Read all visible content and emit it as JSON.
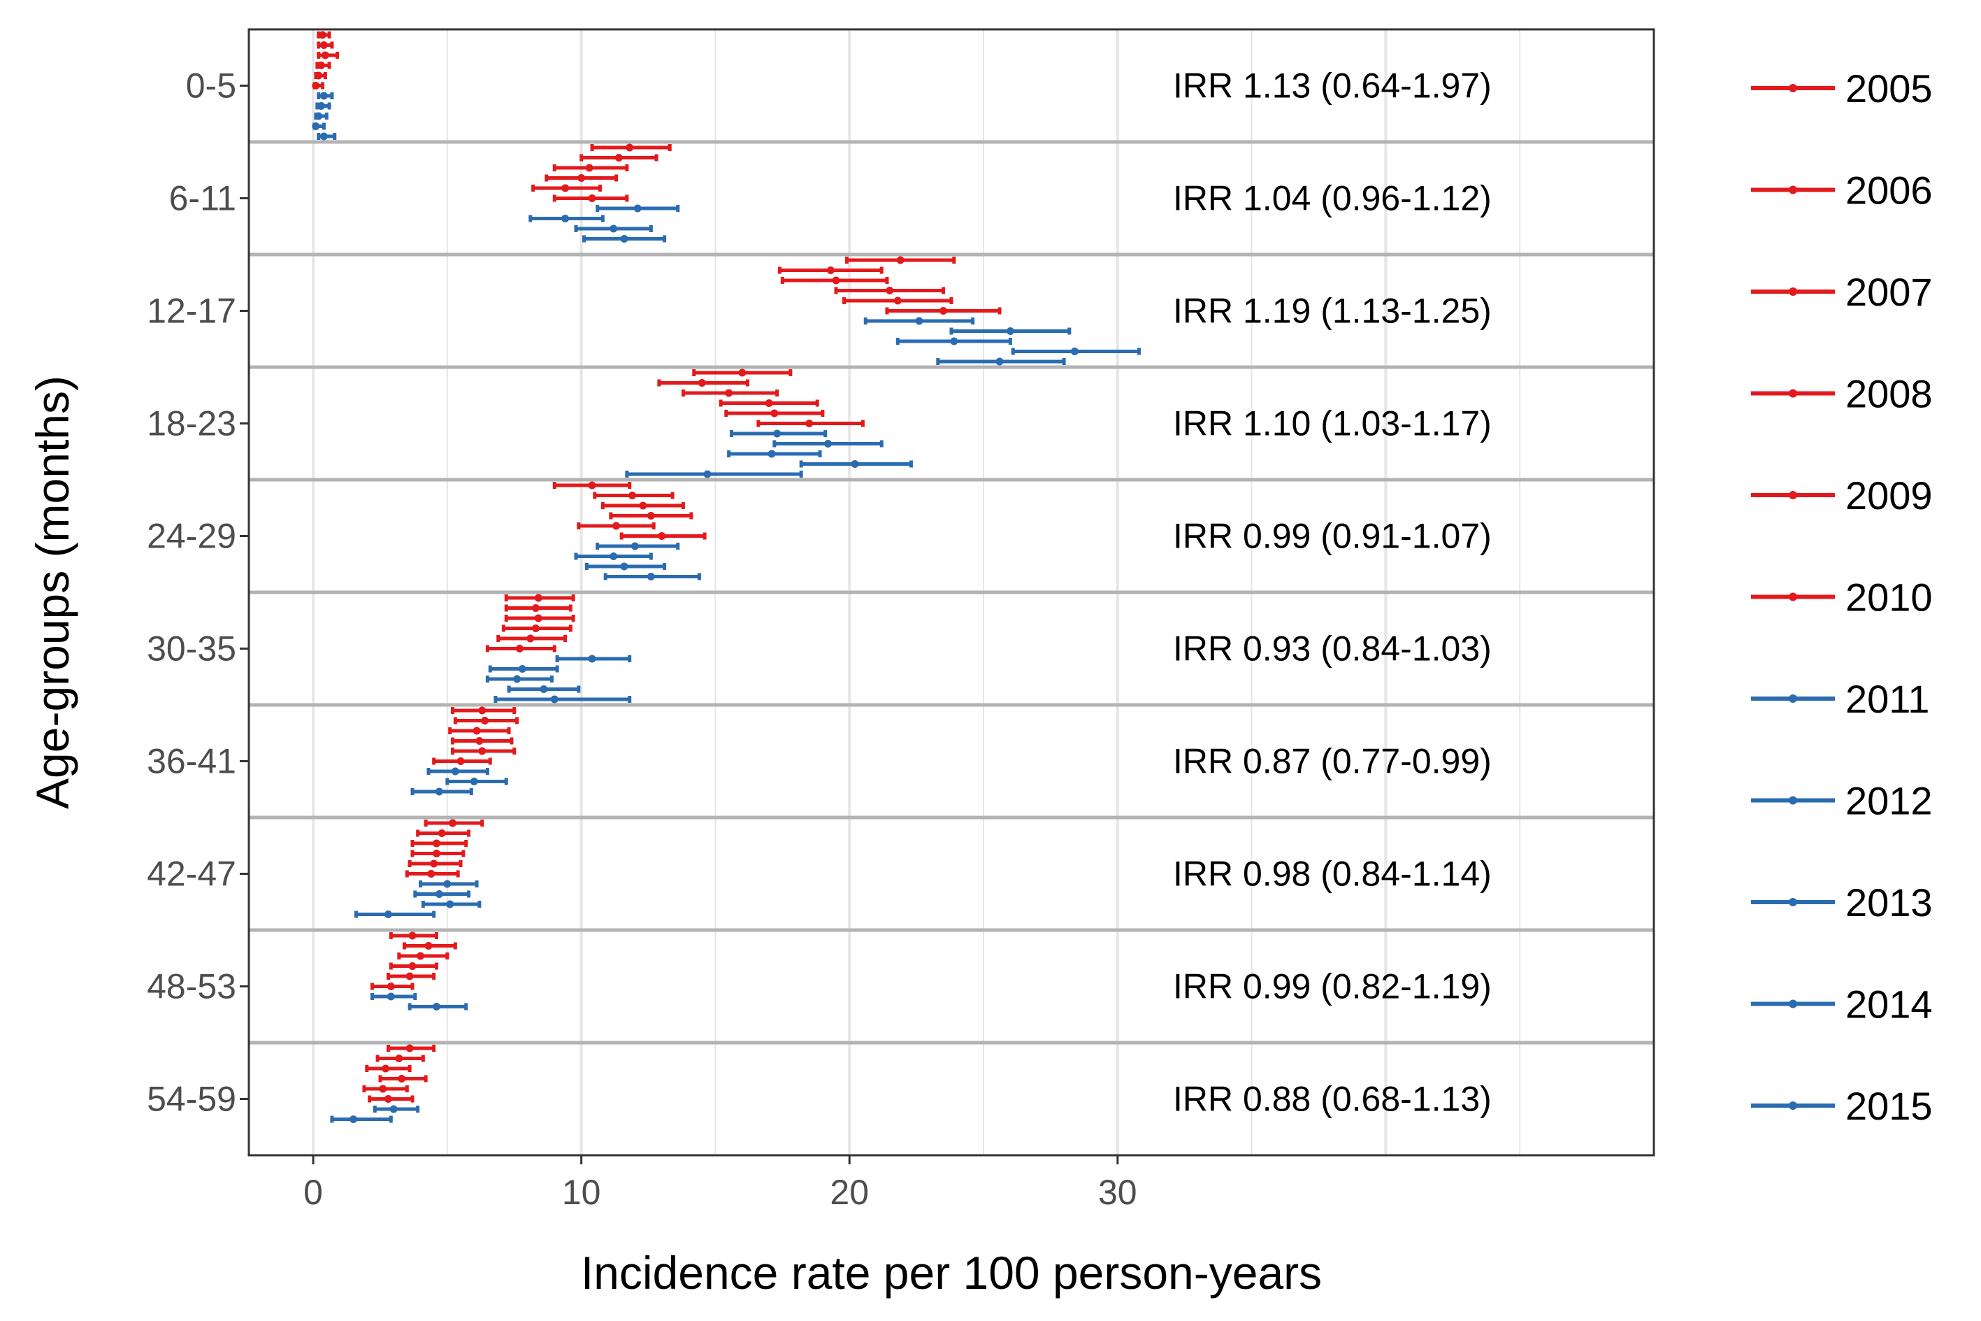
{
  "chart_data": {
    "type": "errorbar",
    "xlabel": "Incidence rate per 100 person-years",
    "ylabel": "Age-groups (months)",
    "xlim": [
      -2.4,
      50
    ],
    "xticks": [
      0,
      10,
      20,
      30
    ],
    "xtick_labels": [
      "0",
      "10",
      "20",
      "30"
    ],
    "grid": true,
    "legend_position": "right",
    "years": [
      "2005",
      "2006",
      "2007",
      "2008",
      "2009",
      "2010",
      "2011",
      "2012",
      "2013",
      "2014",
      "2015"
    ],
    "colors": {
      "2005": "#e31a1c",
      "2006": "#e31a1c",
      "2007": "#e31a1c",
      "2008": "#e31a1c",
      "2009": "#e31a1c",
      "2010": "#e31a1c",
      "2011": "#2b6cb0",
      "2012": "#2b6cb0",
      "2013": "#2b6cb0",
      "2014": "#2b6cb0",
      "2015": "#2b6cb0"
    },
    "groups": [
      {
        "label": "0-5",
        "irr": "IRR 1.13 (0.64-1.97)",
        "points": [
          {
            "year": "2005",
            "est": 0.35,
            "lo": 0.2,
            "hi": 0.6
          },
          {
            "year": "2006",
            "est": 0.4,
            "lo": 0.2,
            "hi": 0.7
          },
          {
            "year": "2007",
            "est": 0.45,
            "lo": 0.2,
            "hi": 0.9
          },
          {
            "year": "2008",
            "est": 0.3,
            "lo": 0.15,
            "hi": 0.6
          },
          {
            "year": "2009",
            "est": 0.2,
            "lo": 0.1,
            "hi": 0.45
          },
          {
            "year": "2010",
            "est": 0.1,
            "lo": 0.05,
            "hi": 0.35
          },
          {
            "year": "2011",
            "est": 0.4,
            "lo": 0.2,
            "hi": 0.7
          },
          {
            "year": "2012",
            "est": 0.3,
            "lo": 0.15,
            "hi": 0.6
          },
          {
            "year": "2013",
            "est": 0.2,
            "lo": 0.1,
            "hi": 0.5
          },
          {
            "year": "2014",
            "est": 0.1,
            "lo": 0.05,
            "hi": 0.4
          },
          {
            "year": "2015",
            "est": 0.4,
            "lo": 0.2,
            "hi": 0.8
          }
        ]
      },
      {
        "label": "6-11",
        "irr": "IRR 1.04 (0.96-1.12)",
        "points": [
          {
            "year": "2005",
            "est": 11.8,
            "lo": 10.4,
            "hi": 13.3
          },
          {
            "year": "2006",
            "est": 11.4,
            "lo": 10.0,
            "hi": 12.8
          },
          {
            "year": "2007",
            "est": 10.3,
            "lo": 9.0,
            "hi": 11.7
          },
          {
            "year": "2008",
            "est": 10.0,
            "lo": 8.7,
            "hi": 11.3
          },
          {
            "year": "2009",
            "est": 9.4,
            "lo": 8.2,
            "hi": 10.7
          },
          {
            "year": "2010",
            "est": 10.4,
            "lo": 9.0,
            "hi": 11.7
          },
          {
            "year": "2011",
            "est": 12.1,
            "lo": 10.6,
            "hi": 13.6
          },
          {
            "year": "2012",
            "est": 9.4,
            "lo": 8.1,
            "hi": 10.8
          },
          {
            "year": "2013",
            "est": 11.2,
            "lo": 9.8,
            "hi": 12.6
          },
          {
            "year": "2014",
            "est": 11.6,
            "lo": 10.1,
            "hi": 13.1
          }
        ]
      },
      {
        "label": "12-17",
        "irr": "IRR 1.19 (1.13-1.25)",
        "points": [
          {
            "year": "2005",
            "est": 21.9,
            "lo": 19.9,
            "hi": 23.9
          },
          {
            "year": "2006",
            "est": 19.3,
            "lo": 17.4,
            "hi": 21.2
          },
          {
            "year": "2007",
            "est": 19.5,
            "lo": 17.5,
            "hi": 21.4
          },
          {
            "year": "2008",
            "est": 21.5,
            "lo": 19.5,
            "hi": 23.5
          },
          {
            "year": "2009",
            "est": 21.8,
            "lo": 19.8,
            "hi": 23.8
          },
          {
            "year": "2010",
            "est": 23.5,
            "lo": 21.4,
            "hi": 25.6
          },
          {
            "year": "2011",
            "est": 22.6,
            "lo": 20.6,
            "hi": 24.6
          },
          {
            "year": "2012",
            "est": 26.0,
            "lo": 23.8,
            "hi": 28.2
          },
          {
            "year": "2013",
            "est": 23.9,
            "lo": 21.8,
            "hi": 26.0
          },
          {
            "year": "2014",
            "est": 28.4,
            "lo": 26.1,
            "hi": 30.8
          },
          {
            "year": "2015",
            "est": 25.6,
            "lo": 23.3,
            "hi": 28.0
          }
        ]
      },
      {
        "label": "18-23",
        "irr": "IRR 1.10 (1.03-1.17)",
        "points": [
          {
            "year": "2005",
            "est": 16.0,
            "lo": 14.2,
            "hi": 17.8
          },
          {
            "year": "2006",
            "est": 14.5,
            "lo": 12.9,
            "hi": 16.2
          },
          {
            "year": "2007",
            "est": 15.5,
            "lo": 13.8,
            "hi": 17.3
          },
          {
            "year": "2008",
            "est": 17.0,
            "lo": 15.2,
            "hi": 18.8
          },
          {
            "year": "2009",
            "est": 17.2,
            "lo": 15.4,
            "hi": 19.0
          },
          {
            "year": "2010",
            "est": 18.5,
            "lo": 16.6,
            "hi": 20.5
          },
          {
            "year": "2011",
            "est": 17.3,
            "lo": 15.6,
            "hi": 19.1
          },
          {
            "year": "2012",
            "est": 19.2,
            "lo": 17.2,
            "hi": 21.2
          },
          {
            "year": "2013",
            "est": 17.1,
            "lo": 15.5,
            "hi": 18.9
          },
          {
            "year": "2014",
            "est": 20.2,
            "lo": 18.2,
            "hi": 22.3
          },
          {
            "year": "2015",
            "est": 14.7,
            "lo": 11.7,
            "hi": 18.2
          }
        ]
      },
      {
        "label": "24-29",
        "irr": "IRR 0.99 (0.91-1.07)",
        "points": [
          {
            "year": "2005",
            "est": 10.4,
            "lo": 9.0,
            "hi": 11.8
          },
          {
            "year": "2006",
            "est": 11.9,
            "lo": 10.5,
            "hi": 13.4
          },
          {
            "year": "2007",
            "est": 12.3,
            "lo": 10.8,
            "hi": 13.8
          },
          {
            "year": "2008",
            "est": 12.6,
            "lo": 11.1,
            "hi": 14.1
          },
          {
            "year": "2009",
            "est": 11.3,
            "lo": 9.9,
            "hi": 12.7
          },
          {
            "year": "2010",
            "est": 13.0,
            "lo": 11.5,
            "hi": 14.6
          },
          {
            "year": "2011",
            "est": 12.0,
            "lo": 10.6,
            "hi": 13.6
          },
          {
            "year": "2012",
            "est": 11.2,
            "lo": 9.8,
            "hi": 12.6
          },
          {
            "year": "2013",
            "est": 11.6,
            "lo": 10.2,
            "hi": 13.1
          },
          {
            "year": "2014",
            "est": 12.6,
            "lo": 10.9,
            "hi": 14.4
          }
        ]
      },
      {
        "label": "30-35",
        "irr": "IRR 0.93 (0.84-1.03)",
        "points": [
          {
            "year": "2005",
            "est": 8.4,
            "lo": 7.2,
            "hi": 9.7
          },
          {
            "year": "2006",
            "est": 8.3,
            "lo": 7.2,
            "hi": 9.6
          },
          {
            "year": "2007",
            "est": 8.4,
            "lo": 7.2,
            "hi": 9.7
          },
          {
            "year": "2008",
            "est": 8.3,
            "lo": 7.1,
            "hi": 9.6
          },
          {
            "year": "2009",
            "est": 8.1,
            "lo": 6.9,
            "hi": 9.4
          },
          {
            "year": "2010",
            "est": 7.7,
            "lo": 6.5,
            "hi": 9.0
          },
          {
            "year": "2011",
            "est": 10.4,
            "lo": 9.1,
            "hi": 11.8
          },
          {
            "year": "2012",
            "est": 7.8,
            "lo": 6.6,
            "hi": 9.1
          },
          {
            "year": "2013",
            "est": 7.6,
            "lo": 6.5,
            "hi": 8.9
          },
          {
            "year": "2014",
            "est": 8.6,
            "lo": 7.3,
            "hi": 9.9
          },
          {
            "year": "2015",
            "est": 9.0,
            "lo": 6.8,
            "hi": 11.8
          }
        ]
      },
      {
        "label": "36-41",
        "irr": "IRR 0.87 (0.77-0.99)",
        "points": [
          {
            "year": "2005",
            "est": 6.3,
            "lo": 5.2,
            "hi": 7.5
          },
          {
            "year": "2006",
            "est": 6.4,
            "lo": 5.3,
            "hi": 7.6
          },
          {
            "year": "2007",
            "est": 6.1,
            "lo": 5.1,
            "hi": 7.3
          },
          {
            "year": "2008",
            "est": 6.2,
            "lo": 5.2,
            "hi": 7.4
          },
          {
            "year": "2009",
            "est": 6.3,
            "lo": 5.2,
            "hi": 7.5
          },
          {
            "year": "2010",
            "est": 5.5,
            "lo": 4.5,
            "hi": 6.6
          },
          {
            "year": "2011",
            "est": 5.3,
            "lo": 4.3,
            "hi": 6.5
          },
          {
            "year": "2012",
            "est": 6.0,
            "lo": 5.0,
            "hi": 7.2
          },
          {
            "year": "2013",
            "est": 4.7,
            "lo": 3.7,
            "hi": 5.9
          }
        ]
      },
      {
        "label": "42-47",
        "irr": "IRR 0.98 (0.84-1.14)",
        "points": [
          {
            "year": "2005",
            "est": 5.2,
            "lo": 4.2,
            "hi": 6.3
          },
          {
            "year": "2006",
            "est": 4.8,
            "lo": 3.9,
            "hi": 5.8
          },
          {
            "year": "2007",
            "est": 4.6,
            "lo": 3.7,
            "hi": 5.7
          },
          {
            "year": "2008",
            "est": 4.6,
            "lo": 3.7,
            "hi": 5.6
          },
          {
            "year": "2009",
            "est": 4.5,
            "lo": 3.6,
            "hi": 5.5
          },
          {
            "year": "2010",
            "est": 4.4,
            "lo": 3.5,
            "hi": 5.4
          },
          {
            "year": "2011",
            "est": 5.0,
            "lo": 4.0,
            "hi": 6.1
          },
          {
            "year": "2012",
            "est": 4.7,
            "lo": 3.8,
            "hi": 5.8
          },
          {
            "year": "2013",
            "est": 5.1,
            "lo": 4.1,
            "hi": 6.2
          },
          {
            "year": "2014",
            "est": 2.8,
            "lo": 1.6,
            "hi": 4.5
          }
        ]
      },
      {
        "label": "48-53",
        "irr": "IRR 0.99 (0.82-1.19)",
        "points": [
          {
            "year": "2005",
            "est": 3.7,
            "lo": 2.9,
            "hi": 4.6
          },
          {
            "year": "2006",
            "est": 4.3,
            "lo": 3.4,
            "hi": 5.3
          },
          {
            "year": "2007",
            "est": 4.0,
            "lo": 3.2,
            "hi": 5.0
          },
          {
            "year": "2008",
            "est": 3.7,
            "lo": 2.9,
            "hi": 4.6
          },
          {
            "year": "2009",
            "est": 3.6,
            "lo": 2.8,
            "hi": 4.5
          },
          {
            "year": "2010",
            "est": 2.9,
            "lo": 2.2,
            "hi": 3.7
          },
          {
            "year": "2011",
            "est": 2.9,
            "lo": 2.2,
            "hi": 3.8
          },
          {
            "year": "2012",
            "est": 4.6,
            "lo": 3.6,
            "hi": 5.7
          }
        ]
      },
      {
        "label": "54-59",
        "irr": "IRR 0.88 (0.68-1.13)",
        "points": [
          {
            "year": "2005",
            "est": 3.6,
            "lo": 2.8,
            "hi": 4.5
          },
          {
            "year": "2006",
            "est": 3.2,
            "lo": 2.4,
            "hi": 4.1
          },
          {
            "year": "2007",
            "est": 2.7,
            "lo": 2.0,
            "hi": 3.6
          },
          {
            "year": "2008",
            "est": 3.3,
            "lo": 2.5,
            "hi": 4.2
          },
          {
            "year": "2009",
            "est": 2.6,
            "lo": 1.9,
            "hi": 3.5
          },
          {
            "year": "2010",
            "est": 2.8,
            "lo": 2.1,
            "hi": 3.7
          },
          {
            "year": "2011",
            "est": 3.0,
            "lo": 2.3,
            "hi": 3.9
          },
          {
            "year": "2012",
            "est": 1.5,
            "lo": 0.7,
            "hi": 2.9
          }
        ]
      }
    ]
  }
}
